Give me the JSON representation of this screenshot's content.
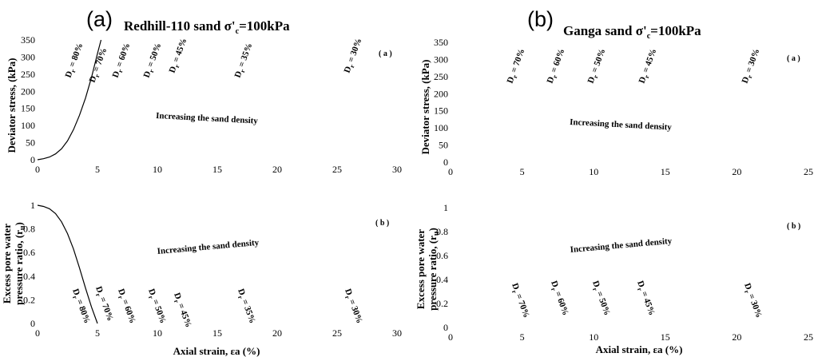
{
  "figure": {
    "panels": [
      {
        "letter": "(a)",
        "title_pre": "Redhill-110 sand σ'",
        "title_sub": "c",
        "title_post": "=100kPa",
        "charts": [
          {
            "type": "line",
            "sublabel": "( a )",
            "ylabel": "Deviator stress, (kPa)",
            "xticks": [
              "0",
              "5",
              "10",
              "15",
              "20",
              "25",
              "30"
            ],
            "yticks": [
              "0",
              "50",
              "100",
              "150",
              "200",
              "250",
              "300",
              "350"
            ],
            "annotation": "Increasing the sand density",
            "dr_labels": [
              "= 80%",
              "= 70%",
              "= 60%",
              "= 50%",
              "= 45%",
              "= 35%",
              "= 30%"
            ]
          },
          {
            "type": "line",
            "sublabel": "( b )",
            "ylabel_line1": "Excess pore water",
            "ylabel_line2": "pressure ratio, (r",
            "ylabel_sub": "u",
            "ylabel_end": ")",
            "xlabel": "Axial strain, εa (%)",
            "xticks": [
              "0",
              "5",
              "10",
              "15",
              "20",
              "25",
              "30"
            ],
            "yticks": [
              "0",
              "0.2",
              "0.4",
              "0.6",
              "0.8",
              "1"
            ],
            "annotation": "Increasing the sand density",
            "dr_labels": [
              "= 80%",
              "= 70%",
              "= 60%",
              "= 50%",
              "= 45%",
              "= 35%",
              "= 30%"
            ]
          }
        ]
      },
      {
        "letter": "(b)",
        "title_pre": "Ganga sand σ'",
        "title_sub": "c",
        "title_post": "=100kPa",
        "charts": [
          {
            "type": "line",
            "sublabel": "( a )",
            "ylabel": "Deviator stress, (kPa)",
            "xticks": [
              "0",
              "5",
              "10",
              "15",
              "20",
              "25"
            ],
            "yticks": [
              "0",
              "50",
              "100",
              "150",
              "200",
              "250",
              "300",
              "350"
            ],
            "annotation": "Increasing the sand density",
            "dr_labels": [
              "= 70%",
              "= 60%",
              "= 50%",
              "= 45%",
              "= 30%"
            ]
          },
          {
            "type": "line",
            "sublabel": "( b )",
            "ylabel_line1": "Excess pore water",
            "ylabel_line2": "pressure ratio, (r",
            "ylabel_sub": "u",
            "ylabel_end": ")",
            "xlabel": "Axial strain, εa (%)",
            "xticks": [
              "0",
              "5",
              "10",
              "15",
              "20",
              "25"
            ],
            "yticks": [
              "0",
              "0.2",
              "0.4",
              "0.6",
              "0.8",
              "1"
            ],
            "annotation": "Increasing the sand density",
            "dr_labels": [
              "= 70%",
              "= 60%",
              "= 50%",
              "= 45%",
              "= 30%"
            ]
          }
        ]
      }
    ],
    "dr_prefix": "D",
    "dr_sub": "r"
  },
  "chart_data": [
    {
      "type": "line",
      "ylabel": "Deviator stress, (kPa)",
      "xlim": [
        0,
        30
      ],
      "ylim": [
        0,
        350
      ],
      "grid": false,
      "series": [
        {
          "name": "= 80%",
          "x": [
            0,
            0.5,
            1,
            1.5,
            2,
            2.5,
            3,
            3.5,
            4,
            4.5,
            5,
            5.3
          ],
          "y": [
            0,
            3,
            8,
            17,
            32,
            55,
            88,
            130,
            180,
            240,
            310,
            350
          ]
        }
      ],
      "annotations": [
        "= 80%",
        "= 70%",
        "= 60%",
        "= 50%",
        "= 45%",
        "= 35%",
        "= 30%",
        "Increasing the sand density"
      ]
    },
    {
      "type": "line",
      "ylabel": "Excess pore water pressure ratio, (ru)",
      "xlabel": "Axial strain, εa (%)",
      "xlim": [
        0,
        30
      ],
      "ylim": [
        0,
        1
      ],
      "grid": false,
      "series": [
        {
          "name": "= 80%",
          "x": [
            0,
            0.5,
            1,
            1.5,
            2,
            2.5,
            3,
            3.5,
            4,
            4.5,
            5
          ],
          "y": [
            1.0,
            0.99,
            0.97,
            0.93,
            0.86,
            0.76,
            0.63,
            0.47,
            0.3,
            0.14,
            0.0
          ]
        }
      ],
      "annotations": [
        "= 80%",
        "= 70%",
        "= 60%",
        "= 50%",
        "= 45%",
        "= 35%",
        "= 30%",
        "Increasing the sand density"
      ]
    },
    {
      "type": "line",
      "ylabel": "Deviator stress, (kPa)",
      "xlim": [
        0,
        25
      ],
      "ylim": [
        0,
        350
      ],
      "grid": false,
      "series": [],
      "annotations": [
        "= 70%",
        "= 60%",
        "= 50%",
        "= 45%",
        "= 30%",
        "Increasing the sand density"
      ]
    },
    {
      "type": "line",
      "ylabel": "Excess pore water pressure ratio, (ru)",
      "xlabel": "Axial strain, εa (%)",
      "xlim": [
        0,
        25
      ],
      "ylim": [
        0,
        1
      ],
      "grid": false,
      "series": [],
      "annotations": [
        "= 70%",
        "= 60%",
        "= 50%",
        "= 45%",
        "= 30%",
        "Increasing the sand density"
      ]
    }
  ]
}
